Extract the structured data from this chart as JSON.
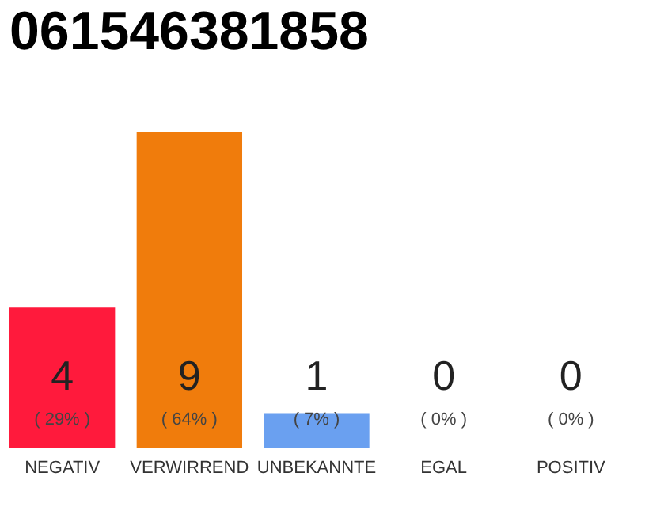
{
  "chart_data": {
    "type": "bar",
    "title": "061546381858",
    "categories": [
      "NEGATIV",
      "VERWIRREND",
      "UNBEKANNTE",
      "EGAL",
      "POSITIV"
    ],
    "values": [
      4,
      9,
      1,
      0,
      0
    ],
    "data_labels": true,
    "colors": [
      "#ff1a3c",
      "#f07c0c",
      "#6aa0f0",
      "#8dc46a",
      "#2aa050"
    ],
    "annotations": [
      "( 29% )",
      "( 64% )",
      "( 7% )",
      "( 0% )",
      "( 0% )"
    ],
    "grid": false
  }
}
